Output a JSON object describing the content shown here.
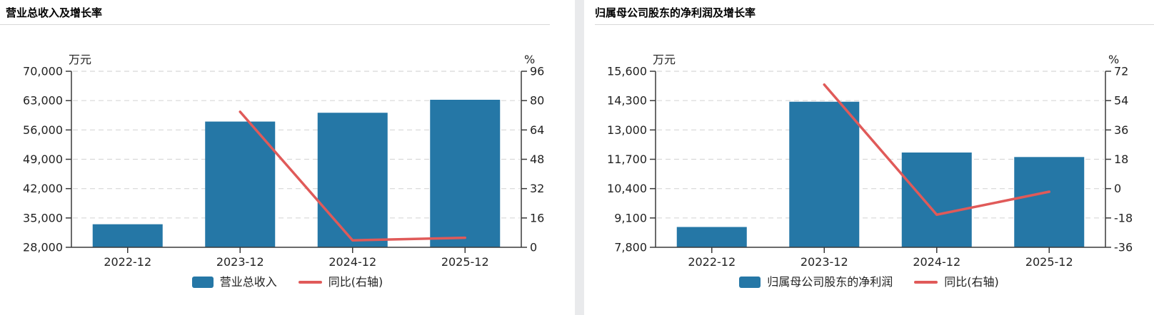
{
  "colors": {
    "bar": "#2577a6",
    "line": "#e05a59",
    "grid": "#d8d8d8",
    "axis": "#3a3a3a",
    "tick_text": "#222222",
    "panel_gap": "#e9eaec"
  },
  "chart_data": [
    {
      "type": "bar+line",
      "title": "营业总收入及增长率",
      "unit_left": "万元",
      "unit_right": "%",
      "categories": [
        "2022-12",
        "2023-12",
        "2024-12",
        "2025-12"
      ],
      "series": [
        {
          "name": "营业总收入",
          "type": "bar",
          "axis": "left",
          "values": [
            33500,
            58000,
            60100,
            63200
          ]
        },
        {
          "name": "同比(右轴)",
          "type": "line",
          "axis": "right",
          "values": [
            null,
            73.9,
            3.8,
            5.2
          ]
        }
      ],
      "left_axis": {
        "min": 28000,
        "max": 70000,
        "tick_labels_top_to_bottom": [
          "70,000",
          "63,000",
          "56,000",
          "49,000",
          "42,000",
          "35,000",
          "28,000"
        ]
      },
      "right_axis": {
        "min": 0,
        "max": 96,
        "tick_labels_top_to_bottom": [
          "96",
          "80",
          "64",
          "48",
          "32",
          "16",
          "0"
        ]
      },
      "grid": "horizontal-dashed",
      "legend_position": "bottom"
    },
    {
      "type": "bar+line",
      "title": "归属母公司股东的净利润及增长率",
      "unit_left": "万元",
      "unit_right": "%",
      "categories": [
        "2022-12",
        "2023-12",
        "2024-12",
        "2025-12"
      ],
      "series": [
        {
          "name": "归属母公司股东的净利润",
          "type": "bar",
          "axis": "left",
          "values": [
            8700,
            14250,
            12000,
            11800
          ]
        },
        {
          "name": "同比(右轴)",
          "type": "line",
          "axis": "right",
          "values": [
            null,
            63.8,
            -16.0,
            -1.9
          ]
        }
      ],
      "left_axis": {
        "min": 7800,
        "max": 15600,
        "tick_labels_top_to_bottom": [
          "15,600",
          "14,300",
          "13,000",
          "11,700",
          "10,400",
          "9,100",
          "7,800"
        ]
      },
      "right_axis": {
        "min": -36,
        "max": 72,
        "tick_labels_top_to_bottom": [
          "72",
          "54",
          "36",
          "18",
          "0",
          "-18",
          "-36"
        ]
      },
      "grid": "horizontal-dashed",
      "legend_position": "bottom"
    }
  ]
}
